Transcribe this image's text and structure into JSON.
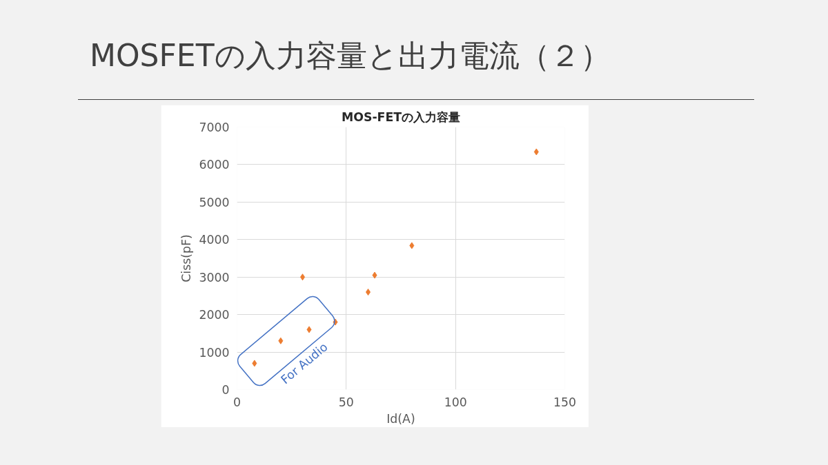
{
  "chart_data": {
    "type": "scatter",
    "title": "MOSFETの入力容量と出力電流（２）",
    "subtitle": "MOS-FETの入力容量",
    "xlabel": "Id(A)",
    "ylabel": "Ciss(pF)",
    "x": [
      8,
      20,
      30,
      33,
      45,
      60,
      63,
      80,
      137
    ],
    "series": [
      {
        "color": "#ed7d31",
        "values": [
          700,
          1300,
          3000,
          1600,
          1800,
          2600,
          3050,
          3840,
          6340
        ]
      }
    ],
    "marker": "diamond",
    "grid": true,
    "xlim": [
      0,
      150
    ],
    "xticks": [
      0,
      50,
      100,
      150
    ],
    "ylim": [
      0,
      7000
    ],
    "yticks": [
      0,
      1000,
      2000,
      3000,
      4000,
      5000,
      6000,
      7000
    ],
    "annotations": [
      "For Audio"
    ]
  }
}
